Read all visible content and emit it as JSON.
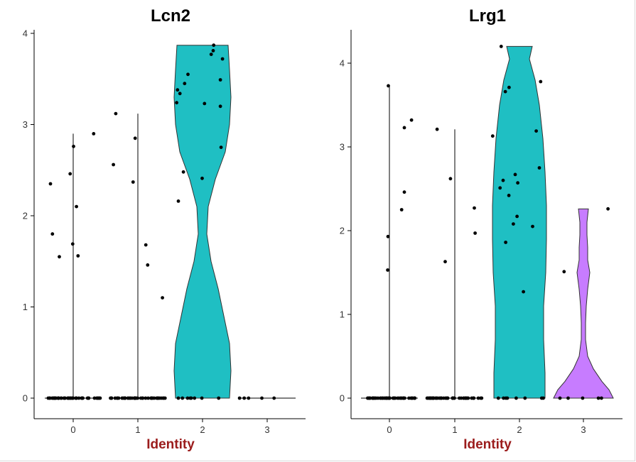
{
  "colors": {
    "violin_teal": "#1fbfc3",
    "violin_purple": "#c77cff",
    "xlabel": "#9b1c1c",
    "axis": "#000000"
  },
  "chart_data": [
    {
      "type": "violin",
      "title": "Lcn2",
      "xlabel": "Identity",
      "ylabel": "",
      "categories": [
        "0",
        "1",
        "2",
        "3"
      ],
      "ylim": [
        -0.1,
        4.1
      ],
      "yticks": [
        0,
        1,
        2,
        3,
        4
      ],
      "violins": [
        {
          "category": "0",
          "max": 2.9,
          "color": ""
        },
        {
          "category": "1",
          "max": 3.12,
          "color": ""
        },
        {
          "category": "2",
          "max": 3.87,
          "color": "#1fbfc3"
        },
        {
          "category": "3",
          "max": 0.0,
          "color": ""
        }
      ],
      "points": [
        {
          "category": "0",
          "values": [
            1.69,
            2.1,
            1.8,
            1.55,
            2.46,
            2.76,
            2.35,
            2.9,
            1.56
          ]
        },
        {
          "category": "1",
          "values": [
            2.85,
            3.12,
            2.56,
            2.37,
            1.46,
            1.68,
            1.1
          ]
        },
        {
          "category": "2",
          "values": [
            3.87,
            3.81,
            3.77,
            3.72,
            3.55,
            3.49,
            3.45,
            3.38,
            3.34,
            3.24,
            3.23,
            3.2,
            2.75,
            2.48,
            2.41,
            2.16
          ]
        },
        {
          "category": "3",
          "values": []
        }
      ],
      "zero_point_counts": [
        45,
        45,
        8,
        5
      ]
    },
    {
      "type": "violin",
      "title": "Lrg1",
      "xlabel": "Identity",
      "ylabel": "",
      "categories": [
        "0",
        "1",
        "2",
        "3"
      ],
      "ylim": [
        -0.15,
        4.4
      ],
      "yticks": [
        0,
        1,
        2,
        3,
        4
      ],
      "violins": [
        {
          "category": "0",
          "max": 3.73,
          "color": ""
        },
        {
          "category": "1",
          "max": 3.21,
          "color": ""
        },
        {
          "category": "2",
          "max": 4.2,
          "color": "#1fbfc3"
        },
        {
          "category": "3",
          "max": 2.26,
          "color": "#c77cff"
        }
      ],
      "points": [
        {
          "category": "0",
          "values": [
            2.25,
            1.93,
            3.23,
            3.32,
            2.46,
            1.53,
            3.73
          ]
        },
        {
          "category": "1",
          "values": [
            2.62,
            1.97,
            3.21,
            1.63,
            2.27
          ]
        },
        {
          "category": "2",
          "values": [
            4.2,
            3.78,
            3.71,
            3.66,
            3.19,
            3.13,
            2.75,
            2.67,
            2.6,
            2.57,
            2.51,
            2.42,
            2.17,
            2.08,
            2.05,
            1.86,
            1.27
          ]
        },
        {
          "category": "3",
          "values": [
            2.26,
            1.51
          ]
        }
      ],
      "zero_point_counts": [
        45,
        45,
        8,
        5
      ]
    }
  ]
}
